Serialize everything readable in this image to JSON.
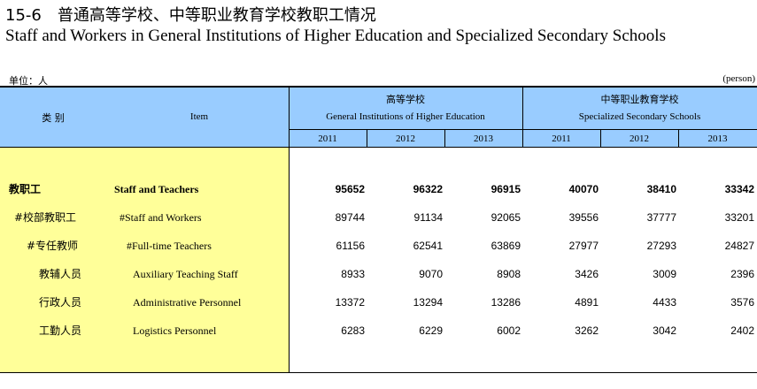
{
  "title": {
    "cn": "15-6　普通高等学校、中等职业教育学校教职工情况",
    "en": "Staff and Workers in General Institutions of Higher Education and Specialized Secondary Schools"
  },
  "unit": {
    "cn": "单位：人",
    "en": "(person)"
  },
  "header": {
    "category_cn": "类 别",
    "item_en": "Item",
    "group1_cn": "高等学校",
    "group1_en": "General Institutions of Higher Education",
    "group2_cn": "中等职业教育学校",
    "group2_en": "Specialized Secondary Schools",
    "years": [
      "2011",
      "2012",
      "2013",
      "2011",
      "2012",
      "2013"
    ]
  },
  "rows": [
    {
      "cn": "教职工",
      "en": "Staff and Teachers",
      "values": [
        "95652",
        "96322",
        "96915",
        "40070",
        "38410",
        "33342"
      ]
    },
    {
      "cn": "#校部教职工",
      "en": "#Staff and Workers",
      "values": [
        "89744",
        "91134",
        "92065",
        "39556",
        "37777",
        "33201"
      ]
    },
    {
      "cn": "#专任教师",
      "en": "#Full-time Teachers",
      "values": [
        "61156",
        "62541",
        "63869",
        "27977",
        "27293",
        "24827"
      ]
    },
    {
      "cn": "教辅人员",
      "en": "Auxiliary Teaching Staff",
      "values": [
        "8933",
        "9070",
        "8908",
        "3426",
        "3009",
        "2396"
      ]
    },
    {
      "cn": "行政人员",
      "en": "Administrative Personnel",
      "values": [
        "13372",
        "13294",
        "13286",
        "4891",
        "4433",
        "3576"
      ]
    },
    {
      "cn": "工勤人员",
      "en": "Logistics Personnel",
      "values": [
        "6283",
        "6229",
        "6002",
        "3262",
        "3042",
        "2402"
      ]
    }
  ]
}
